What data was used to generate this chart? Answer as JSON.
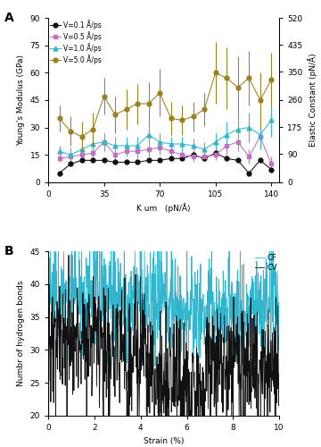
{
  "panel_A": {
    "x": [
      7,
      14,
      21,
      28,
      35,
      42,
      49,
      56,
      63,
      70,
      77,
      84,
      91,
      98,
      105,
      112,
      119,
      126,
      133,
      140
    ],
    "v01_y": [
      5,
      10,
      12,
      12,
      12,
      11,
      11,
      11,
      12,
      12,
      13,
      13,
      15,
      13,
      16,
      13,
      12,
      5,
      12,
      7
    ],
    "v01_yerr": [
      0.5,
      1,
      1,
      1,
      1,
      1,
      0.5,
      0.5,
      1,
      1,
      1,
      1,
      1.5,
      1,
      1.5,
      1,
      1,
      1,
      1,
      1
    ],
    "v05_y": [
      13,
      14,
      15,
      16,
      22,
      15,
      17,
      17,
      18,
      19,
      17,
      15,
      14,
      14,
      15,
      20,
      22,
      14,
      25,
      10
    ],
    "v05_yerr": [
      2,
      3,
      3,
      4,
      5,
      3,
      3,
      4,
      4,
      4,
      3,
      3,
      3,
      3,
      3,
      5,
      5,
      4,
      6,
      4
    ],
    "v10_y": [
      17,
      15,
      18,
      21,
      22,
      20,
      20,
      20,
      26,
      22,
      21,
      21,
      20,
      18,
      22,
      26,
      29,
      30,
      26,
      34
    ],
    "v10_yerr": [
      3,
      4,
      4,
      5,
      5,
      5,
      5,
      5,
      6,
      5,
      4,
      4,
      4,
      4,
      5,
      7,
      7,
      8,
      8,
      9
    ],
    "v50_y": [
      35,
      28,
      25,
      29,
      47,
      37,
      40,
      43,
      43,
      49,
      35,
      34,
      36,
      40,
      60,
      57,
      52,
      57,
      45,
      56
    ],
    "v50_yerr": [
      7,
      8,
      8,
      9,
      10,
      10,
      11,
      11,
      12,
      13,
      9,
      8,
      8,
      9,
      17,
      17,
      17,
      15,
      15,
      15
    ],
    "xlabel": "K um   (pN/Å)",
    "ylabel_left": "Young's Modulus (GPa)",
    "ylabel_right": "Elastic Constant (pN/Å)",
    "xlim": [
      0,
      145
    ],
    "ylim_left": [
      0,
      90
    ],
    "ylim_right": [
      0,
      520
    ],
    "xticks": [
      0,
      35,
      70,
      105,
      140
    ],
    "yticks_left": [
      0,
      15,
      30,
      45,
      60,
      75,
      90
    ],
    "yticks_right": [
      0,
      90,
      175,
      260,
      350,
      435,
      520
    ],
    "label_A": "A",
    "colors": {
      "v01": "#111111",
      "v05": "#c070c0",
      "v10": "#35b5c8",
      "v50": "#9a8020"
    },
    "legend_labels": [
      "V=0.1 Å/ps",
      "V=0.5 Å/ps",
      "V=1.0 Å/ps",
      "V=5.0 Å/ps"
    ],
    "legend_markers": [
      "o",
      "s",
      "^",
      "o"
    ]
  },
  "panel_B": {
    "n_points": 800,
    "strain_max": 10.0,
    "xlabel": "Strain (%)",
    "ylabel": "Numbr of hydrogen bonds",
    "xlim": [
      0,
      10
    ],
    "ylim": [
      20,
      45
    ],
    "yticks": [
      20,
      25,
      30,
      35,
      40,
      45
    ],
    "xticks": [
      0,
      2,
      4,
      6,
      8,
      10
    ],
    "label_B": "B",
    "color_cf": "#30b5cc",
    "color_cv": "#111111",
    "legend_labels": [
      "CF",
      "CV"
    ]
  }
}
